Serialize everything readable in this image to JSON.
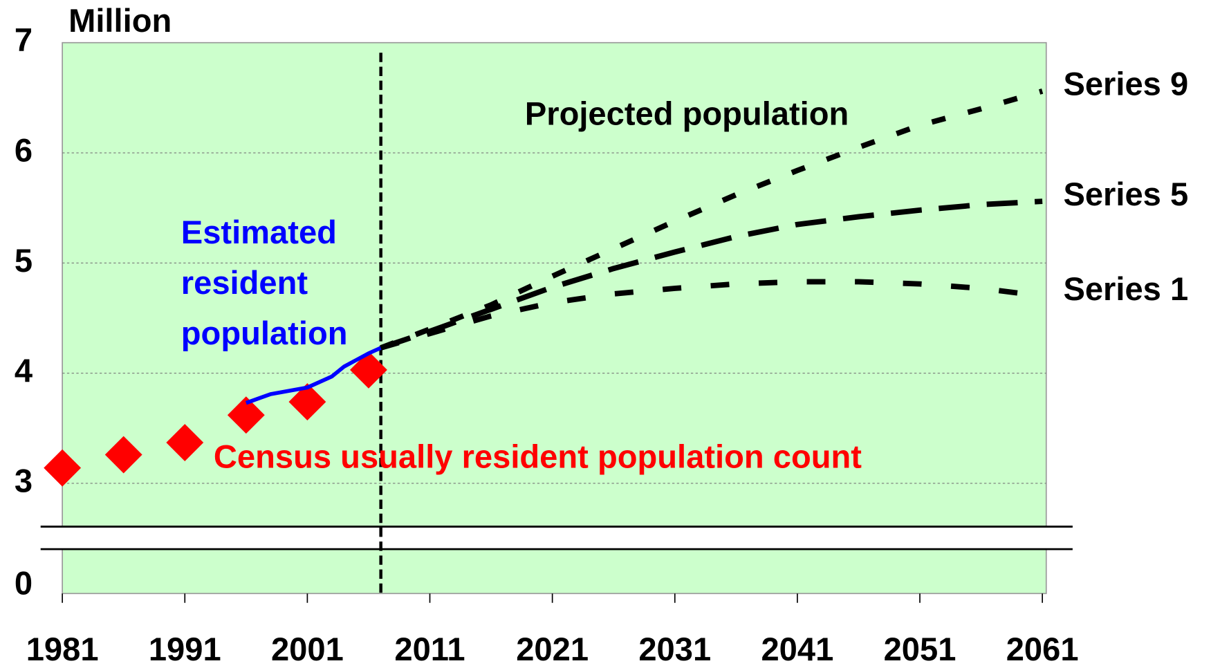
{
  "chart_data": {
    "type": "line",
    "y_label": "Million",
    "annotation": "Projected population",
    "xlim": [
      1981,
      2061
    ],
    "xticks": [
      1981,
      1991,
      2001,
      2011,
      2021,
      2031,
      2041,
      2051,
      2061
    ],
    "ylim": [
      0,
      7
    ],
    "yticks": [
      0,
      3,
      4,
      5,
      6,
      7
    ],
    "y_break": [
      0.2,
      2.6
    ],
    "projection_start": 2007,
    "grid": true,
    "background": "#ccffcc",
    "series": [
      {
        "name": "Census usually resident population count",
        "color": "#ff0000",
        "style": "diamond",
        "x": [
          1981,
          1986,
          1991,
          1996,
          2001,
          2006
        ],
        "values": [
          3.14,
          3.26,
          3.37,
          3.62,
          3.74,
          4.03
        ]
      },
      {
        "name": "Estimated resident population",
        "color": "#0000ff",
        "style": "solid",
        "x": [
          1996,
          1998,
          2001,
          2003,
          2004,
          2005,
          2006,
          2007
        ],
        "values": [
          3.73,
          3.81,
          3.87,
          3.97,
          4.06,
          4.12,
          4.18,
          4.23
        ]
      },
      {
        "name": "Series 9",
        "color": "#000000",
        "style": "short-dash",
        "x": [
          2007,
          2011,
          2016,
          2021,
          2026,
          2031,
          2036,
          2041,
          2046,
          2051,
          2056,
          2061
        ],
        "values": [
          4.23,
          4.4,
          4.62,
          4.88,
          5.13,
          5.38,
          5.62,
          5.84,
          6.05,
          6.25,
          6.4,
          6.56
        ]
      },
      {
        "name": "Series 5",
        "color": "#000000",
        "style": "long-dash",
        "x": [
          2007,
          2011,
          2016,
          2021,
          2026,
          2031,
          2036,
          2041,
          2046,
          2051,
          2056,
          2061
        ],
        "values": [
          4.23,
          4.38,
          4.58,
          4.78,
          4.95,
          5.1,
          5.24,
          5.35,
          5.42,
          5.48,
          5.53,
          5.56
        ]
      },
      {
        "name": "Series 1",
        "color": "#000000",
        "style": "medium-dash",
        "x": [
          2007,
          2011,
          2016,
          2021,
          2026,
          2031,
          2036,
          2041,
          2046,
          2051,
          2056,
          2061
        ],
        "values": [
          4.23,
          4.36,
          4.52,
          4.64,
          4.72,
          4.77,
          4.81,
          4.83,
          4.83,
          4.81,
          4.77,
          4.7
        ]
      }
    ]
  }
}
